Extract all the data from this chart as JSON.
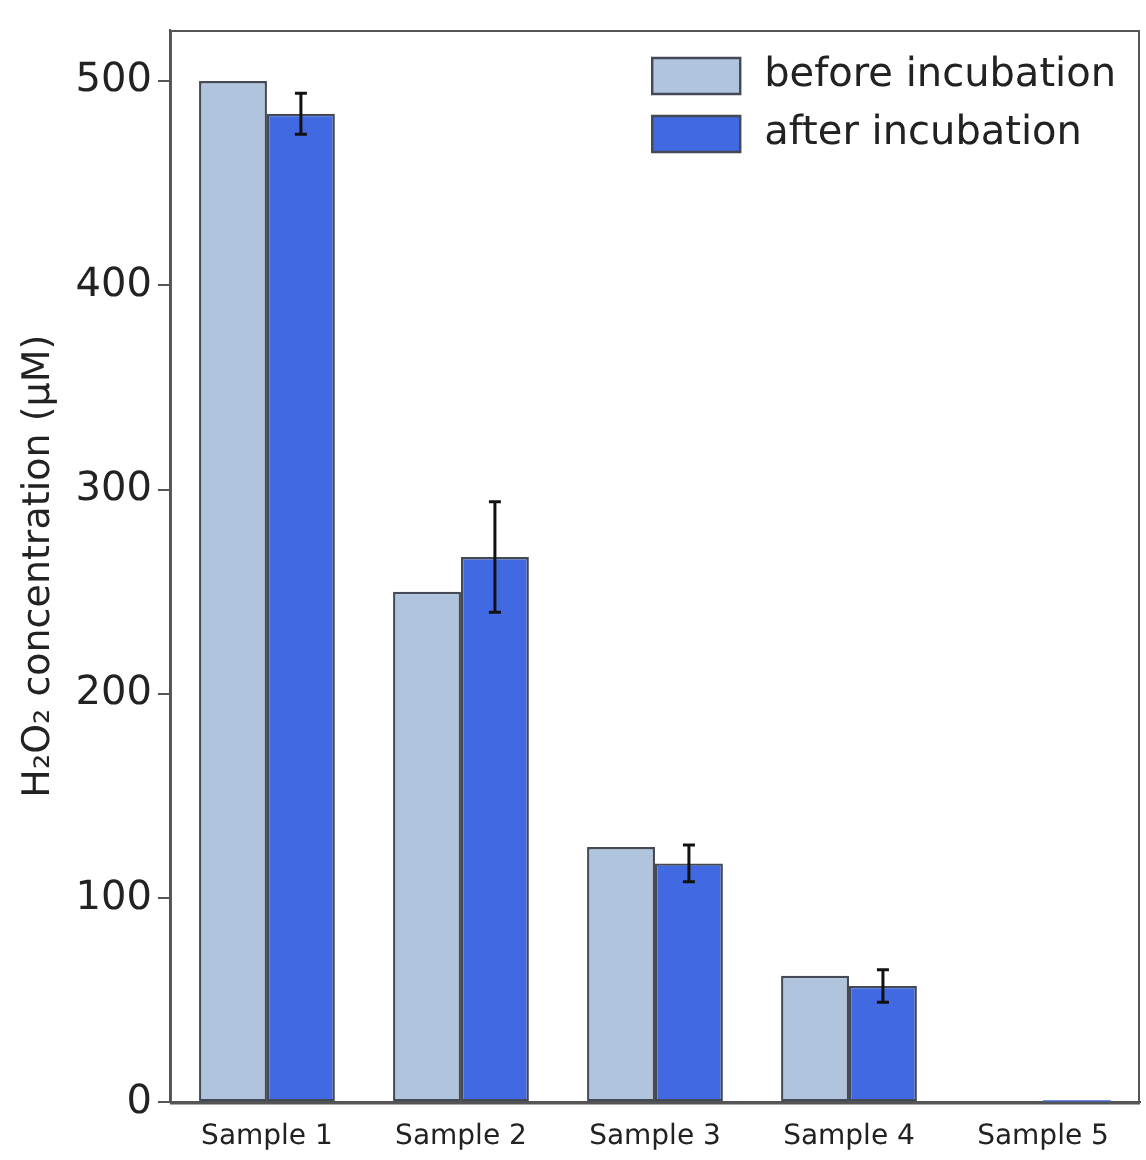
{
  "chart_data": {
    "type": "bar",
    "ylabel": "H₂O₂ concentration (μM)",
    "categories": [
      "Sample 1",
      "Sample 2",
      "Sample 3",
      "Sample 4",
      "Sample 5"
    ],
    "series": [
      {
        "name": "before incubation",
        "color": "#b0c4de",
        "values": [
          500,
          250,
          125,
          62,
          0
        ]
      },
      {
        "name": "after incubation",
        "color": "#4169e1",
        "values": [
          484,
          267,
          117,
          57,
          1
        ],
        "errors": [
          10,
          27,
          9,
          8,
          null
        ]
      }
    ],
    "ylim": [
      0,
      525
    ],
    "yticks": [
      0,
      100,
      200,
      300,
      400,
      500
    ],
    "grid": false,
    "legend": "top right"
  }
}
